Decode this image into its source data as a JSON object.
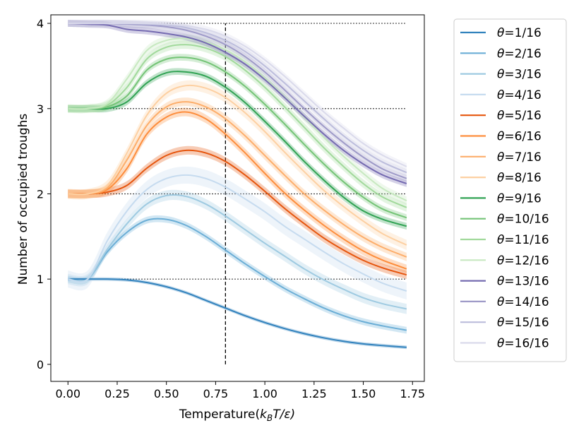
{
  "chart_data": {
    "type": "line",
    "xlabel": "Temperature(k_BT/ε)",
    "xlabel_parts": {
      "prefix": "Temperature(",
      "k": "k",
      "sub": "B",
      "rest": "T/ε)"
    },
    "ylabel": "Number of occupied troughs",
    "xlim": [
      -0.087,
      1.81
    ],
    "ylim": [
      -0.2,
      4.1
    ],
    "x_ticks": [
      0.0,
      0.25,
      0.5,
      0.75,
      1.0,
      1.25,
      1.5,
      1.75
    ],
    "x_tick_labels": [
      "0.00",
      "0.25",
      "0.50",
      "0.75",
      "1.00",
      "1.25",
      "1.50",
      "1.75"
    ],
    "y_ticks": [
      0,
      1,
      2,
      3,
      4
    ],
    "y_tick_labels": [
      "0",
      "1",
      "2",
      "3",
      "4"
    ],
    "reference_lines": {
      "horizontal_dotted": [
        1,
        2,
        3,
        4
      ],
      "horizontal_span": [
        0.0,
        1.72
      ],
      "vertical_dashed_x": 0.8,
      "vertical_span": [
        0.0,
        4.0
      ]
    },
    "legend_position": "outside-right",
    "x": [
      0.0,
      0.1,
      0.2,
      0.3,
      0.4,
      0.5,
      0.6,
      0.7,
      0.8,
      0.9,
      1.0,
      1.1,
      1.2,
      1.3,
      1.4,
      1.5,
      1.6,
      1.72
    ],
    "series": [
      {
        "name": "θ=1/16",
        "theta": "1/16",
        "color": "#3182bd",
        "band": 0.02,
        "values": [
          1.0,
          1.0,
          1.0,
          0.99,
          0.96,
          0.91,
          0.84,
          0.75,
          0.66,
          0.57,
          0.49,
          0.42,
          0.36,
          0.31,
          0.27,
          0.24,
          0.22,
          0.2
        ]
      },
      {
        "name": "θ=2/16",
        "theta": "2/16",
        "color": "#6baed6",
        "band": 0.04,
        "values": [
          1.0,
          1.0,
          1.32,
          1.55,
          1.69,
          1.7,
          1.63,
          1.5,
          1.34,
          1.18,
          1.03,
          0.89,
          0.77,
          0.66,
          0.57,
          0.5,
          0.45,
          0.4
        ]
      },
      {
        "name": "θ=3/16",
        "theta": "3/16",
        "color": "#9ecae1",
        "band": 0.06,
        "values": [
          1.0,
          1.0,
          1.35,
          1.65,
          1.88,
          1.98,
          1.97,
          1.88,
          1.74,
          1.58,
          1.42,
          1.27,
          1.12,
          0.99,
          0.88,
          0.78,
          0.71,
          0.65
        ]
      },
      {
        "name": "θ=4/16",
        "theta": "4/16",
        "color": "#c6dbef",
        "band": 0.1,
        "values": [
          1.0,
          1.0,
          1.45,
          1.8,
          2.05,
          2.18,
          2.22,
          2.18,
          2.08,
          1.94,
          1.79,
          1.62,
          1.47,
          1.32,
          1.18,
          1.06,
          0.95,
          0.86
        ]
      },
      {
        "name": "θ=5/16",
        "theta": "5/16",
        "color": "#e6550d",
        "band": 0.05,
        "values": [
          2.0,
          2.0,
          2.02,
          2.1,
          2.3,
          2.45,
          2.51,
          2.48,
          2.38,
          2.22,
          2.03,
          1.83,
          1.65,
          1.48,
          1.34,
          1.22,
          1.13,
          1.05
        ]
      },
      {
        "name": "θ=6/16",
        "theta": "6/16",
        "color": "#fd8d3c",
        "band": 0.05,
        "values": [
          2.0,
          2.0,
          2.05,
          2.3,
          2.7,
          2.9,
          2.96,
          2.88,
          2.7,
          2.48,
          2.24,
          2.01,
          1.81,
          1.63,
          1.47,
          1.33,
          1.22,
          1.12
        ]
      },
      {
        "name": "θ=7/16",
        "theta": "7/16",
        "color": "#fdae6b",
        "band": 0.05,
        "values": [
          2.0,
          2.0,
          2.07,
          2.4,
          2.8,
          3.02,
          3.08,
          3.02,
          2.88,
          2.68,
          2.45,
          2.22,
          2.0,
          1.81,
          1.64,
          1.49,
          1.37,
          1.26
        ]
      },
      {
        "name": "θ=8/16",
        "theta": "8/16",
        "color": "#fdd0a2",
        "band": 0.06,
        "values": [
          2.0,
          2.0,
          2.1,
          2.48,
          2.92,
          3.18,
          3.27,
          3.24,
          3.13,
          2.95,
          2.73,
          2.49,
          2.26,
          2.04,
          1.85,
          1.68,
          1.53,
          1.4
        ]
      },
      {
        "name": "θ=9/16",
        "theta": "9/16",
        "color": "#31a354",
        "band": 0.04,
        "values": [
          3.0,
          3.0,
          3.0,
          3.08,
          3.3,
          3.42,
          3.43,
          3.38,
          3.25,
          3.07,
          2.85,
          2.62,
          2.38,
          2.16,
          1.96,
          1.8,
          1.7,
          1.62
        ]
      },
      {
        "name": "θ=10/16",
        "theta": "10/16",
        "color": "#74c476",
        "band": 0.04,
        "values": [
          3.0,
          3.0,
          3.02,
          3.15,
          3.45,
          3.58,
          3.6,
          3.55,
          3.43,
          3.26,
          3.05,
          2.82,
          2.58,
          2.35,
          2.14,
          1.96,
          1.82,
          1.72
        ]
      },
      {
        "name": "θ=11/16",
        "theta": "11/16",
        "color": "#a1d99b",
        "band": 0.05,
        "values": [
          3.0,
          3.0,
          3.04,
          3.25,
          3.58,
          3.72,
          3.75,
          3.71,
          3.61,
          3.45,
          3.25,
          3.02,
          2.78,
          2.54,
          2.32,
          2.12,
          1.96,
          1.84
        ]
      },
      {
        "name": "θ=12/16",
        "theta": "12/16",
        "color": "#c7e9c0",
        "band": 0.05,
        "values": [
          3.0,
          3.0,
          3.06,
          3.35,
          3.68,
          3.8,
          3.82,
          3.78,
          3.69,
          3.55,
          3.36,
          3.14,
          2.9,
          2.66,
          2.44,
          2.24,
          2.06,
          1.92
        ]
      },
      {
        "name": "θ=13/16",
        "theta": "13/16",
        "color": "#756bb1",
        "band": 0.04,
        "values": [
          4.0,
          3.99,
          3.98,
          3.93,
          3.91,
          3.88,
          3.84,
          3.77,
          3.66,
          3.52,
          3.34,
          3.13,
          2.91,
          2.7,
          2.51,
          2.35,
          2.22,
          2.12
        ]
      },
      {
        "name": "θ=14/16",
        "theta": "14/16",
        "color": "#9e9ac8",
        "band": 0.04,
        "values": [
          4.0,
          4.0,
          4.0,
          3.99,
          3.98,
          3.96,
          3.92,
          3.85,
          3.75,
          3.61,
          3.43,
          3.22,
          3.0,
          2.79,
          2.6,
          2.43,
          2.29,
          2.18
        ]
      },
      {
        "name": "θ=15/16",
        "theta": "15/16",
        "color": "#bcbddc",
        "band": 0.04,
        "values": [
          4.0,
          4.0,
          4.0,
          4.0,
          3.99,
          3.98,
          3.95,
          3.89,
          3.8,
          3.67,
          3.5,
          3.3,
          3.09,
          2.88,
          2.68,
          2.51,
          2.37,
          2.25
        ]
      },
      {
        "name": "θ=16/16",
        "theta": "16/16",
        "color": "#dadaeb",
        "band": 0.04,
        "values": [
          4.0,
          4.0,
          4.0,
          4.0,
          4.0,
          3.99,
          3.97,
          3.93,
          3.85,
          3.73,
          3.57,
          3.38,
          3.17,
          2.96,
          2.77,
          2.59,
          2.45,
          2.32
        ]
      }
    ]
  }
}
